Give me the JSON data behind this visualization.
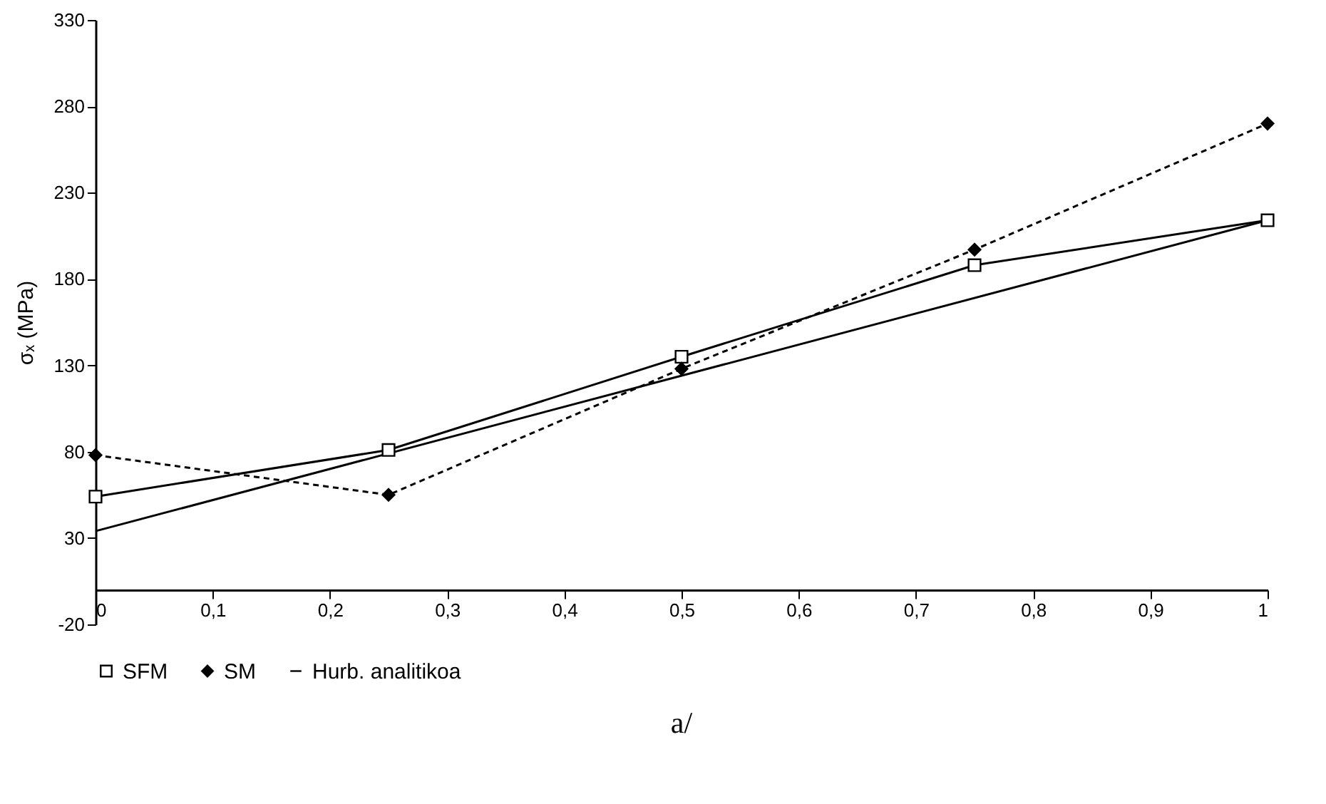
{
  "chart_data": {
    "type": "line",
    "ylabel": "σₓ (MPa)",
    "annotations": [
      "a/"
    ],
    "x": [
      0,
      0.25,
      0.5,
      0.75,
      1
    ],
    "series": [
      {
        "name": "SFM",
        "color": "#000000",
        "marker": "square",
        "line_style": "solid",
        "values": [
          54,
          81,
          135,
          188,
          214
        ]
      },
      {
        "name": "SM",
        "color": "#000000",
        "marker": "diamond",
        "line_style": "dashed",
        "values": [
          78,
          55,
          128,
          197,
          270
        ]
      },
      {
        "name": "Hurb. analitikoa",
        "color": "#000000",
        "marker": "none",
        "line_style": "solid",
        "x": [
          0,
          1
        ],
        "values": [
          34,
          214
        ]
      }
    ],
    "xlim": [
      0,
      1
    ],
    "xticks": [
      {
        "value": 0,
        "label": "0"
      },
      {
        "value": 0.1,
        "label": "0,1"
      },
      {
        "value": 0.2,
        "label": "0,2"
      },
      {
        "value": 0.3,
        "label": "0,3"
      },
      {
        "value": 0.4,
        "label": "0,4"
      },
      {
        "value": 0.5,
        "label": "0,5"
      },
      {
        "value": 0.6,
        "label": "0,6"
      },
      {
        "value": 0.7,
        "label": "0,7"
      },
      {
        "value": 0.8,
        "label": "0,8"
      },
      {
        "value": 0.9,
        "label": "0,9"
      },
      {
        "value": 1,
        "label": "1"
      }
    ],
    "ylim": [
      -20,
      330
    ],
    "yticks": [
      -20,
      30,
      80,
      130,
      180,
      230,
      280,
      330
    ],
    "grid": false,
    "legend": "bottom"
  }
}
